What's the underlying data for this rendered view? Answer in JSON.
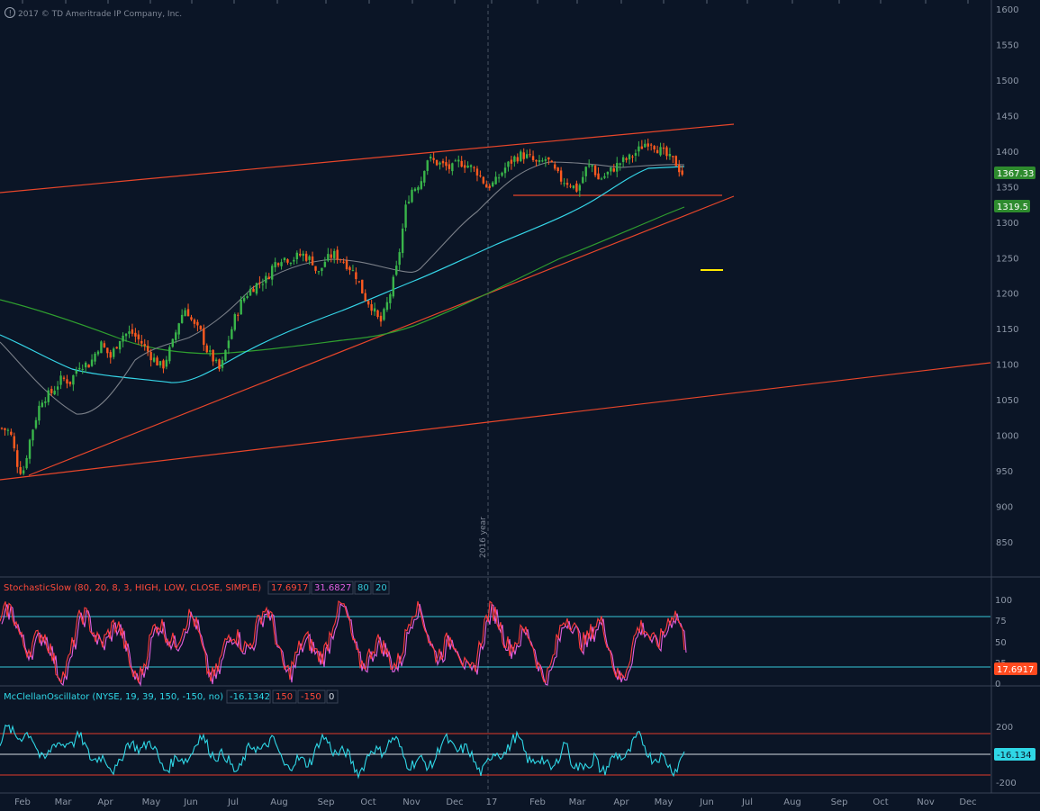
{
  "copyright": "2017 © TD Ameritrade IP Company, Inc.",
  "colors": {
    "background": "#0b1526",
    "up_candle": "#39b54a",
    "down_candle": "#ff5a1f",
    "trendline": "#e8462a",
    "sma_fast": "#7a7f88",
    "sma_mid": "#35d6e8",
    "sma_slow": "#2f9e2f",
    "stoch_k": "#ff3b3b",
    "stoch_d": "#e060e0",
    "mcclellan": "#2fd7e6",
    "ref_line_cyan": "#35c8d8",
    "ref_line_red": "#e03c2a",
    "marker_yellow": "#ffe800"
  },
  "main_panel": {
    "price_labels": [
      "1600",
      "1550",
      "1500",
      "1450",
      "1400",
      "1350",
      "1300",
      "1250",
      "1200",
      "1150",
      "1100",
      "1050",
      "1000",
      "950",
      "900",
      "850"
    ],
    "last_price_badge": "1367.33",
    "sma_badge": "1319.5",
    "year_marker": "2016 year",
    "horizontal_support": 1335,
    "marker_level": 1242
  },
  "x_axis": {
    "labels": [
      "Feb",
      "Mar",
      "Apr",
      "May",
      "Jun",
      "Jul",
      "Aug",
      "Sep",
      "Oct",
      "Nov",
      "Dec",
      "17",
      "Feb",
      "Mar",
      "Apr",
      "May",
      "Jun",
      "Jul",
      "Aug",
      "Sep",
      "Oct",
      "Nov",
      "Dec"
    ]
  },
  "stochastic": {
    "title": "StochasticSlow (80, 20, 8, 3, HIGH, LOW, CLOSE, SIMPLE)",
    "k_value": "17.6917",
    "d_value": "31.6827",
    "over_bought": "80",
    "over_sold": "20",
    "badge": "17.6917",
    "scale_labels": [
      "100",
      "75",
      "50",
      "25",
      "0"
    ]
  },
  "mcclellan": {
    "title": "McClellanOscillator (NYSE, 19, 39, 150, -150, no)",
    "value": "-16.1342",
    "upper": "150",
    "lower": "-150",
    "zero": "0",
    "badge": "-16.134",
    "scale_labels": [
      "200",
      "-200"
    ]
  },
  "chart_data": {
    "type": "candlestick",
    "title": "",
    "ylim": [
      800,
      1610
    ],
    "x_range": [
      "2016-01-29",
      "2017-12-31"
    ],
    "series": [
      {
        "kind": "close_path",
        "points": [
          [
            0,
            1010
          ],
          [
            8,
            1005
          ],
          [
            15,
            960
          ],
          [
            20,
            945
          ],
          [
            28,
            1000
          ],
          [
            38,
            1050
          ],
          [
            48,
            1060
          ],
          [
            58,
            1080
          ],
          [
            66,
            1075
          ],
          [
            75,
            1100
          ],
          [
            85,
            1100
          ],
          [
            95,
            1130
          ],
          [
            105,
            1110
          ],
          [
            115,
            1140
          ],
          [
            125,
            1145
          ],
          [
            135,
            1130
          ],
          [
            145,
            1110
          ],
          [
            155,
            1095
          ],
          [
            165,
            1130
          ],
          [
            172,
            1165
          ],
          [
            178,
            1180
          ],
          [
            185,
            1155
          ],
          [
            192,
            1145
          ],
          [
            198,
            1120
          ],
          [
            205,
            1105
          ],
          [
            211,
            1090
          ],
          [
            218,
            1130
          ],
          [
            225,
            1165
          ],
          [
            232,
            1190
          ],
          [
            240,
            1205
          ],
          [
            248,
            1215
          ],
          [
            256,
            1220
          ],
          [
            262,
            1240
          ],
          [
            270,
            1250
          ],
          [
            280,
            1248
          ],
          [
            290,
            1255
          ],
          [
            300,
            1245
          ],
          [
            305,
            1225
          ],
          [
            312,
            1245
          ],
          [
            320,
            1255
          ],
          [
            328,
            1248
          ],
          [
            335,
            1238
          ],
          [
            342,
            1225
          ],
          [
            350,
            1195
          ],
          [
            358,
            1180
          ],
          [
            362,
            1165
          ],
          [
            366,
            1160
          ],
          [
            370,
            1175
          ],
          [
            376,
            1205
          ],
          [
            382,
            1240
          ],
          [
            386,
            1280
          ],
          [
            390,
            1320
          ],
          [
            395,
            1345
          ],
          [
            400,
            1350
          ],
          [
            405,
            1360
          ],
          [
            410,
            1390
          ],
          [
            418,
            1385
          ],
          [
            426,
            1380
          ],
          [
            434,
            1375
          ],
          [
            442,
            1385
          ],
          [
            450,
            1380
          ],
          [
            460,
            1370
          ],
          [
            468,
            1350
          ],
          [
            476,
            1355
          ],
          [
            485,
            1375
          ],
          [
            495,
            1390
          ],
          [
            502,
            1395
          ],
          [
            510,
            1390
          ],
          [
            518,
            1380
          ],
          [
            526,
            1390
          ],
          [
            532,
            1375
          ],
          [
            540,
            1360
          ],
          [
            548,
            1355
          ],
          [
            556,
            1345
          ],
          [
            564,
            1375
          ],
          [
            570,
            1380
          ],
          [
            576,
            1360
          ],
          [
            582,
            1365
          ],
          [
            590,
            1375
          ],
          [
            598,
            1385
          ],
          [
            606,
            1390
          ],
          [
            614,
            1400
          ],
          [
            620,
            1410
          ],
          [
            626,
            1415
          ],
          [
            632,
            1405
          ],
          [
            638,
            1398
          ],
          [
            644,
            1390
          ],
          [
            650,
            1385
          ],
          [
            654,
            1375
          ],
          [
            658,
            1367
          ]
        ]
      }
    ]
  }
}
